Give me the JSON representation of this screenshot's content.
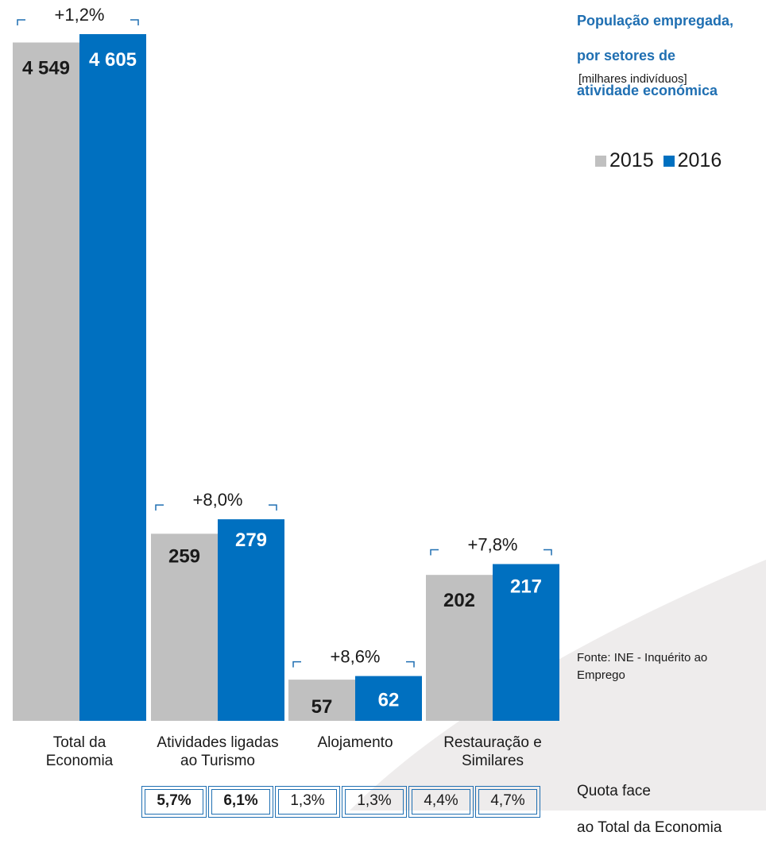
{
  "title": {
    "line1": "População empregada,",
    "line2": "por setores de",
    "line3": "atividade económica"
  },
  "unit_label": "[milhares indivíduos]",
  "legend": [
    {
      "name": "2015",
      "color": "#c0c0c0"
    },
    {
      "name": "2016",
      "color": "#0070c0"
    }
  ],
  "source": "Fonte: INE - Inquérito ao Emprego",
  "quota": {
    "label_line1": "Quota face",
    "label_line2": "ao Total da Economia",
    "values": [
      {
        "text": "5,7%",
        "bold": true
      },
      {
        "text": "6,1%",
        "bold": true
      },
      {
        "text": "1,3%",
        "bold": false
      },
      {
        "text": "1,3%",
        "bold": false
      },
      {
        "text": "4,4%",
        "bold": false
      },
      {
        "text": "4,7%",
        "bold": false
      }
    ]
  },
  "chart_data": {
    "type": "bar",
    "title": "População empregada, por setores de atividade económica",
    "ylabel": "[milhares indivíduos]",
    "categories": [
      [
        "Total da",
        "Economia"
      ],
      [
        "Atividades ligadas",
        "ao Turismo"
      ],
      [
        "Alojamento"
      ],
      [
        "Restauração e",
        "Similares"
      ]
    ],
    "series": [
      {
        "name": "2015",
        "color": "#c0c0c0",
        "values": [
          4549,
          259,
          57,
          202
        ],
        "labels": [
          "4 549",
          "259",
          "57",
          "202"
        ],
        "label_color": "#1a1a1a"
      },
      {
        "name": "2016",
        "color": "#0070c0",
        "values": [
          4605,
          279,
          62,
          217
        ],
        "labels": [
          "4 605",
          "279",
          "62",
          "217"
        ],
        "label_color": "#ffffff"
      }
    ],
    "changes": [
      "+1,2%",
      "+8,0%",
      "+8,6%",
      "+7,8%"
    ],
    "axis_scale": "broken (bars not to a common linear scale)",
    "grid": false,
    "legend_position": "top-right"
  }
}
